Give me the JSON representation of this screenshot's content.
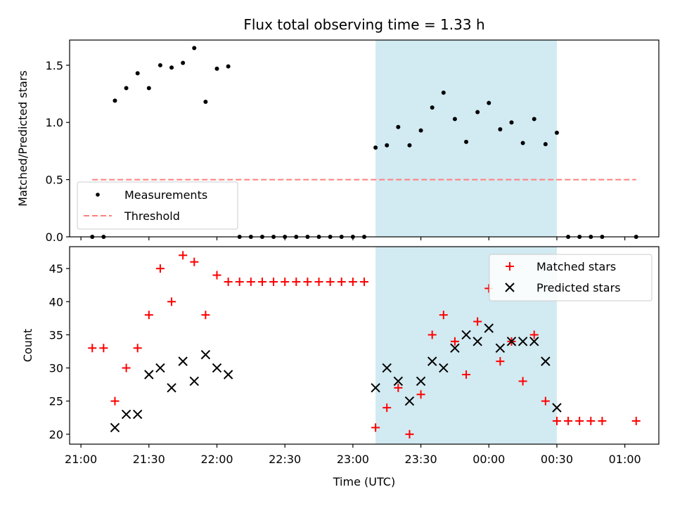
{
  "chart_data": [
    {
      "type": "scatter",
      "title": "Flux total observing time = 1.33 h",
      "xlabel": "",
      "ylabel": "Matched/Predicted stars",
      "ylim": [
        0,
        1.72
      ],
      "yticks": [
        "0.0",
        "0.5",
        "1.0",
        "1.5"
      ],
      "ytick_values": [
        0,
        0.5,
        1.0,
        1.5
      ],
      "shaded_range": [
        "23:10",
        "00:30"
      ],
      "shade_color": "#add8e6",
      "legend_position": "lower-left",
      "series": [
        {
          "name": "Measurements",
          "marker": "dot",
          "color": "#000000",
          "points": [
            [
              "21:05",
              0.0
            ],
            [
              "21:10",
              0.0
            ],
            [
              "21:15",
              1.19
            ],
            [
              "21:20",
              1.3
            ],
            [
              "21:25",
              1.43
            ],
            [
              "21:30",
              1.3
            ],
            [
              "21:35",
              1.5
            ],
            [
              "21:40",
              1.48
            ],
            [
              "21:45",
              1.52
            ],
            [
              "21:50",
              1.65
            ],
            [
              "21:55",
              1.18
            ],
            [
              "22:00",
              1.47
            ],
            [
              "22:05",
              1.49
            ],
            [
              "22:10",
              0.0
            ],
            [
              "22:15",
              0.0
            ],
            [
              "22:20",
              0.0
            ],
            [
              "22:25",
              0.0
            ],
            [
              "22:30",
              0.0
            ],
            [
              "22:35",
              0.0
            ],
            [
              "22:40",
              0.0
            ],
            [
              "22:45",
              0.0
            ],
            [
              "22:50",
              0.0
            ],
            [
              "22:55",
              0.0
            ],
            [
              "23:00",
              0.0
            ],
            [
              "23:05",
              0.0
            ],
            [
              "23:10",
              0.78
            ],
            [
              "23:15",
              0.8
            ],
            [
              "23:20",
              0.96
            ],
            [
              "23:25",
              0.8
            ],
            [
              "23:30",
              0.93
            ],
            [
              "23:35",
              1.13
            ],
            [
              "23:40",
              1.26
            ],
            [
              "23:45",
              1.03
            ],
            [
              "23:50",
              0.83
            ],
            [
              "23:55",
              1.09
            ],
            [
              "00:00",
              1.17
            ],
            [
              "00:05",
              0.94
            ],
            [
              "00:10",
              1.0
            ],
            [
              "00:15",
              0.82
            ],
            [
              "00:20",
              1.03
            ],
            [
              "00:25",
              0.81
            ],
            [
              "00:30",
              0.91
            ],
            [
              "00:35",
              0.0
            ],
            [
              "00:40",
              0.0
            ],
            [
              "00:45",
              0.0
            ],
            [
              "00:50",
              0.0
            ],
            [
              "01:05",
              0.0
            ]
          ]
        },
        {
          "name": "Threshold",
          "style": "dashed-line",
          "color": "#ff7f7f",
          "points": [
            [
              "21:05",
              0.5
            ],
            [
              "01:05",
              0.5
            ]
          ]
        }
      ]
    },
    {
      "type": "scatter",
      "title": "",
      "xlabel": "Time (UTC)",
      "ylabel": "Count",
      "ylim": [
        18.5,
        48.3
      ],
      "yticks": [
        "20",
        "25",
        "30",
        "35",
        "40",
        "45"
      ],
      "ytick_values": [
        20,
        25,
        30,
        35,
        40,
        45
      ],
      "xticks": [
        "21:00",
        "21:30",
        "22:00",
        "22:30",
        "23:00",
        "23:30",
        "00:00",
        "00:30",
        "01:00"
      ],
      "xtick_values": [
        "21:00",
        "21:30",
        "22:00",
        "22:30",
        "23:00",
        "23:30",
        "00:00",
        "00:30",
        "01:00"
      ],
      "xlim": [
        "20:55",
        "01:15"
      ],
      "shaded_range": [
        "23:10",
        "00:30"
      ],
      "shade_color": "#add8e6",
      "legend_position": "top-right",
      "series": [
        {
          "name": "Matched stars",
          "marker": "plus",
          "color": "#ff0000",
          "points": [
            [
              "21:05",
              33
            ],
            [
              "21:10",
              33
            ],
            [
              "21:15",
              25
            ],
            [
              "21:20",
              30
            ],
            [
              "21:25",
              33
            ],
            [
              "21:30",
              38
            ],
            [
              "21:35",
              45
            ],
            [
              "21:40",
              40
            ],
            [
              "21:45",
              47
            ],
            [
              "21:50",
              46
            ],
            [
              "21:55",
              38
            ],
            [
              "22:00",
              44
            ],
            [
              "22:05",
              43
            ],
            [
              "22:10",
              43
            ],
            [
              "22:15",
              43
            ],
            [
              "22:20",
              43
            ],
            [
              "22:25",
              43
            ],
            [
              "22:30",
              43
            ],
            [
              "22:35",
              43
            ],
            [
              "22:40",
              43
            ],
            [
              "22:45",
              43
            ],
            [
              "22:50",
              43
            ],
            [
              "22:55",
              43
            ],
            [
              "23:00",
              43
            ],
            [
              "23:05",
              43
            ],
            [
              "23:10",
              21
            ],
            [
              "23:15",
              24
            ],
            [
              "23:20",
              27
            ],
            [
              "23:25",
              20
            ],
            [
              "23:30",
              26
            ],
            [
              "23:35",
              35
            ],
            [
              "23:40",
              38
            ],
            [
              "23:45",
              34
            ],
            [
              "23:50",
              29
            ],
            [
              "23:55",
              37
            ],
            [
              "00:00",
              42
            ],
            [
              "00:05",
              31
            ],
            [
              "00:10",
              34
            ],
            [
              "00:15",
              28
            ],
            [
              "00:20",
              35
            ],
            [
              "00:25",
              25
            ],
            [
              "00:30",
              22
            ],
            [
              "00:35",
              22
            ],
            [
              "00:40",
              22
            ],
            [
              "00:45",
              22
            ],
            [
              "00:50",
              22
            ],
            [
              "01:05",
              22
            ]
          ]
        },
        {
          "name": "Predicted stars",
          "marker": "x",
          "color": "#000000",
          "points": [
            [
              "21:15",
              21
            ],
            [
              "21:20",
              23
            ],
            [
              "21:25",
              23
            ],
            [
              "21:30",
              29
            ],
            [
              "21:35",
              30
            ],
            [
              "21:40",
              27
            ],
            [
              "21:45",
              31
            ],
            [
              "21:50",
              28
            ],
            [
              "21:55",
              32
            ],
            [
              "22:00",
              30
            ],
            [
              "22:05",
              29
            ],
            [
              "23:10",
              27
            ],
            [
              "23:15",
              30
            ],
            [
              "23:20",
              28
            ],
            [
              "23:25",
              25
            ],
            [
              "23:30",
              28
            ],
            [
              "23:35",
              31
            ],
            [
              "23:40",
              30
            ],
            [
              "23:45",
              33
            ],
            [
              "23:50",
              35
            ],
            [
              "23:55",
              34
            ],
            [
              "00:00",
              36
            ],
            [
              "00:05",
              33
            ],
            [
              "00:10",
              34
            ],
            [
              "00:15",
              34
            ],
            [
              "00:20",
              34
            ],
            [
              "00:25",
              31
            ],
            [
              "00:30",
              24
            ]
          ]
        }
      ]
    }
  ]
}
